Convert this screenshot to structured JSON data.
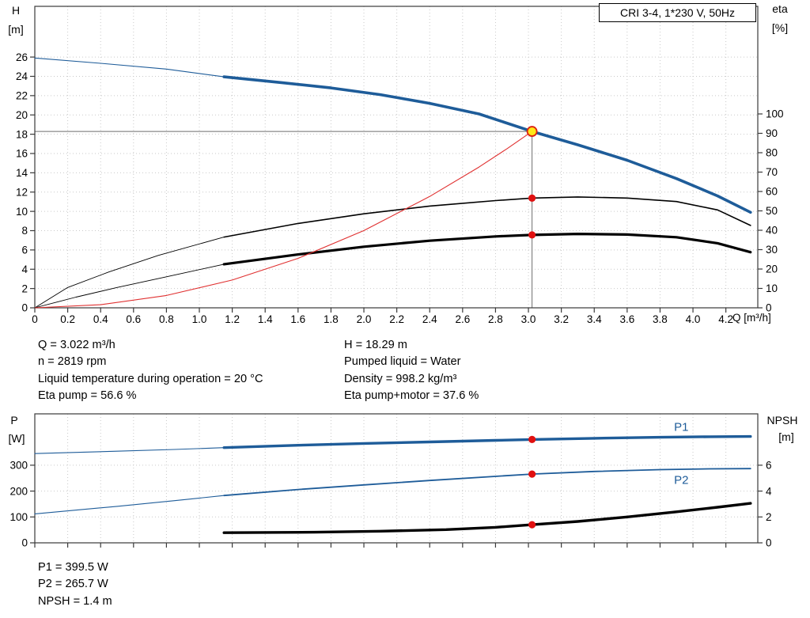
{
  "title_box": "CRI 3-4, 1*230 V, 50Hz",
  "colors": {
    "blue": "#1e5c99",
    "black": "#000000",
    "red": "#e03030",
    "red_dot": "#e01010",
    "duty_fill": "#ffe818",
    "duty_stroke": "#dd2211",
    "grid": "#c9c9c9",
    "frame": "#3a3a3a",
    "guide": "#6e6e6e",
    "text": "#000000"
  },
  "info_top": {
    "left": [
      "Q = 3.022 m³/h",
      "n = 2819 rpm",
      "Liquid temperature during operation = 20 °C",
      "Eta pump = 56.6 %"
    ],
    "right": [
      "H = 18.29 m",
      "Pumped liquid = Water",
      "Density = 998.2 kg/m³",
      "Eta pump+motor = 37.6 %"
    ]
  },
  "info_bottom": [
    "P1 = 399.5 W",
    "P2 = 265.7 W",
    "NPSH = 1.4 m"
  ],
  "chart_data": [
    {
      "type": "line",
      "name": "QH and efficiency curves",
      "x_axis": {
        "label": "Q [m³/h]",
        "min": 0,
        "max": 4.394,
        "ticks": [
          0,
          0.2,
          0.4,
          0.6,
          0.8,
          1.0,
          1.2,
          1.4,
          1.6,
          1.8,
          2.0,
          2.2,
          2.4,
          2.6,
          2.8,
          3.0,
          3.2,
          3.4,
          3.6,
          3.8,
          4.0,
          4.2
        ],
        "tick_labels": [
          "0",
          "0.2",
          "0.4",
          "0.6",
          "0.8",
          "1.0",
          "1.2",
          "1.4",
          "1.6",
          "1.8",
          "2.0",
          "2.2",
          "2.4",
          "2.6",
          "2.8",
          "3.0",
          "3.2",
          "3.4",
          "3.6",
          "3.8",
          "4.0",
          "4.2"
        ],
        "show_tick_labels": true
      },
      "y_left": {
        "title": [
          "H",
          "[m]"
        ],
        "min": 0,
        "max": 31.26,
        "ticks": [
          0,
          2,
          4,
          6,
          8,
          10,
          12,
          14,
          16,
          18,
          20,
          22,
          24,
          26
        ]
      },
      "y_right": {
        "title": [
          "eta",
          "[%]"
        ],
        "min": 0,
        "max": 155.5,
        "ticks": [
          0,
          10,
          20,
          30,
          40,
          50,
          60,
          70,
          80,
          90,
          100
        ]
      },
      "series": [
        {
          "name": "qh-lead",
          "axis": "left",
          "color_key": "blue",
          "width": 1.1,
          "points": [
            [
              0,
              25.9
            ],
            [
              0.4,
              25.35
            ],
            [
              0.8,
              24.75
            ],
            [
              1.15,
              23.95
            ]
          ]
        },
        {
          "name": "qh-curve",
          "axis": "left",
          "color_key": "blue",
          "width": 3.6,
          "points": [
            [
              1.15,
              23.95
            ],
            [
              1.5,
              23.35
            ],
            [
              1.8,
              22.8
            ],
            [
              2.1,
              22.1
            ],
            [
              2.4,
              21.2
            ],
            [
              2.7,
              20.1
            ],
            [
              3.022,
              18.29
            ],
            [
              3.3,
              16.9
            ],
            [
              3.6,
              15.3
            ],
            [
              3.9,
              13.4
            ],
            [
              4.15,
              11.6
            ],
            [
              4.35,
              9.9
            ]
          ]
        },
        {
          "name": "eta-pump-lead",
          "axis": "right",
          "color_key": "black",
          "width": 0.9,
          "points": [
            [
              0,
              0
            ],
            [
              0.2,
              10.5
            ],
            [
              0.45,
              18.5
            ],
            [
              0.75,
              27
            ],
            [
              1.15,
              36.5
            ]
          ]
        },
        {
          "name": "eta-pump-curve",
          "axis": "right",
          "color_key": "black",
          "width": 1.6,
          "points": [
            [
              1.15,
              36.5
            ],
            [
              1.6,
              43.5
            ],
            [
              2.0,
              48.5
            ],
            [
              2.4,
              52.5
            ],
            [
              2.8,
              55.3
            ],
            [
              3.022,
              56.6
            ],
            [
              3.3,
              57.2
            ],
            [
              3.6,
              56.6
            ],
            [
              3.9,
              54.8
            ],
            [
              4.15,
              50.5
            ],
            [
              4.35,
              42.5
            ]
          ]
        },
        {
          "name": "eta-pump-motor-lead",
          "axis": "right",
          "color_key": "black",
          "width": 0.9,
          "points": [
            [
              0,
              0
            ],
            [
              0.25,
              5.5
            ],
            [
              0.5,
              10.5
            ],
            [
              0.8,
              16
            ],
            [
              1.15,
              22.5
            ]
          ]
        },
        {
          "name": "eta-pump-motor-curve",
          "axis": "right",
          "color_key": "black",
          "width": 3.2,
          "points": [
            [
              1.15,
              22.5
            ],
            [
              1.6,
              27.5
            ],
            [
              2.0,
              31.5
            ],
            [
              2.4,
              34.6
            ],
            [
              2.8,
              36.8
            ],
            [
              3.022,
              37.6
            ],
            [
              3.3,
              38.1
            ],
            [
              3.6,
              37.8
            ],
            [
              3.9,
              36.4
            ],
            [
              4.15,
              33.3
            ],
            [
              4.35,
              28.7
            ]
          ]
        },
        {
          "name": "system-curve",
          "axis": "left",
          "color_key": "red",
          "width": 1.1,
          "points": [
            [
              0,
              0
            ],
            [
              0.4,
              0.32
            ],
            [
              0.8,
              1.28
            ],
            [
              1.2,
              2.88
            ],
            [
              1.6,
              5.13
            ],
            [
              2.0,
              8.01
            ],
            [
              2.4,
              11.54
            ],
            [
              2.7,
              14.6
            ],
            [
              2.87,
              16.5
            ],
            [
              3.022,
              18.29
            ]
          ]
        }
      ],
      "guides": [
        {
          "type": "h",
          "axis": "left",
          "v": 18.29,
          "q1": 0,
          "q2": 3.022
        },
        {
          "type": "v",
          "axis": "left",
          "q": 3.022,
          "v1": 0,
          "v2": 18.29
        }
      ],
      "points": [
        {
          "name": "duty-point",
          "q": 3.022,
          "axis": "left",
          "v": 18.29,
          "style": "duty"
        },
        {
          "name": "eta-pump-point",
          "q": 3.022,
          "axis": "right",
          "v": 56.6,
          "style": "red"
        },
        {
          "name": "eta-pump-motor-point",
          "q": 3.022,
          "axis": "right",
          "v": 37.6,
          "style": "red"
        }
      ],
      "duty_point": {
        "Q_m3h": 3.022,
        "H_m": 18.29,
        "eta_pump_pct": 56.6,
        "eta_pump_motor_pct": 37.6,
        "n_rpm": 2819
      }
    },
    {
      "type": "line",
      "name": "Power and NPSH curves",
      "x_axis": {
        "label": "",
        "min": 0,
        "max": 4.394,
        "ticks": [
          0,
          0.2,
          0.4,
          0.6,
          0.8,
          1.0,
          1.2,
          1.4,
          1.6,
          1.8,
          2.0,
          2.2,
          2.4,
          2.6,
          2.8,
          3.0,
          3.2,
          3.4,
          3.6,
          3.8,
          4.0,
          4.2
        ],
        "tick_labels": [],
        "show_tick_labels": false
      },
      "y_left": {
        "title": [
          "P",
          "[W]"
        ],
        "min": 0,
        "max": 498.5,
        "ticks": [
          0,
          100,
          200,
          300
        ]
      },
      "y_right": {
        "title": [
          "NPSH",
          "[m]"
        ],
        "min": 0,
        "max": 9.97,
        "ticks": [
          0,
          2,
          4,
          6
        ]
      },
      "series": [
        {
          "name": "p1-lead",
          "axis": "left",
          "color_key": "blue",
          "width": 1.1,
          "points": [
            [
              0,
              345
            ],
            [
              0.5,
              354
            ],
            [
              0.85,
              361
            ],
            [
              1.15,
              368
            ]
          ]
        },
        {
          "name": "p1-curve",
          "axis": "left",
          "color_key": "blue",
          "width": 3.4,
          "points": [
            [
              1.15,
              368
            ],
            [
              1.6,
              377
            ],
            [
              2.0,
              384
            ],
            [
              2.4,
              390
            ],
            [
              2.8,
              396
            ],
            [
              3.022,
              399.5
            ],
            [
              3.4,
              404
            ],
            [
              3.8,
              408
            ],
            [
              4.1,
              410
            ],
            [
              4.35,
              411
            ]
          ]
        },
        {
          "name": "p2-lead",
          "axis": "left",
          "color_key": "blue",
          "width": 1.1,
          "points": [
            [
              0,
              112
            ],
            [
              0.5,
              141
            ],
            [
              0.85,
              163
            ],
            [
              1.15,
              183
            ]
          ]
        },
        {
          "name": "p2-curve",
          "axis": "left",
          "color_key": "blue",
          "width": 1.8,
          "points": [
            [
              1.15,
              183
            ],
            [
              1.6,
              206
            ],
            [
              2.0,
              224
            ],
            [
              2.4,
              241
            ],
            [
              2.8,
              257
            ],
            [
              3.022,
              265.7
            ],
            [
              3.4,
              276
            ],
            [
              3.8,
              283
            ],
            [
              4.1,
              286
            ],
            [
              4.35,
              287
            ]
          ]
        },
        {
          "name": "npsh-curve",
          "axis": "right",
          "color_key": "black",
          "width": 3.4,
          "points": [
            [
              1.15,
              0.78
            ],
            [
              1.7,
              0.82
            ],
            [
              2.1,
              0.9
            ],
            [
              2.5,
              1.02
            ],
            [
              2.8,
              1.2
            ],
            [
              3.022,
              1.4
            ],
            [
              3.3,
              1.65
            ],
            [
              3.6,
              2.0
            ],
            [
              3.9,
              2.4
            ],
            [
              4.15,
              2.75
            ],
            [
              4.35,
              3.05
            ]
          ]
        }
      ],
      "guides": [],
      "points": [
        {
          "name": "p1-point",
          "q": 3.022,
          "axis": "left",
          "v": 399.5,
          "style": "red"
        },
        {
          "name": "p2-point",
          "q": 3.022,
          "axis": "left",
          "v": 265.7,
          "style": "red"
        },
        {
          "name": "npsh-point",
          "q": 3.022,
          "axis": "right",
          "v": 1.4,
          "style": "red"
        }
      ],
      "series_labels": [
        {
          "text": "P1",
          "q": 3.885,
          "axis": "left",
          "v": 432
        },
        {
          "text": "P2",
          "q": 3.885,
          "axis": "left",
          "v": 228
        }
      ],
      "duty_values": {
        "P1_W": 399.5,
        "P2_W": 265.7,
        "NPSH_m": 1.4
      }
    }
  ]
}
